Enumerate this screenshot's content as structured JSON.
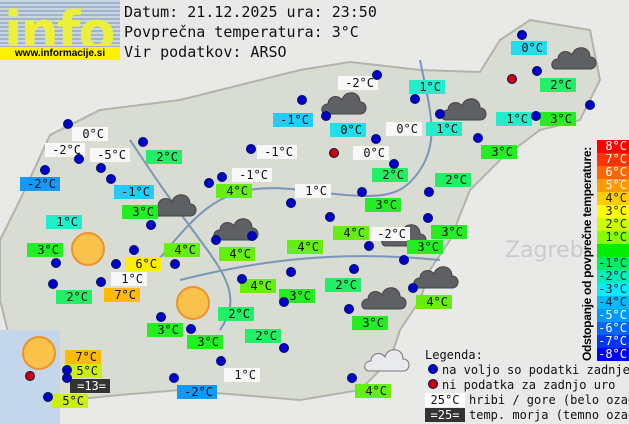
{
  "logo": {
    "text": "info",
    "url": "www.informacije.si"
  },
  "header": {
    "date_line": "Datum: 21.12.2025 ura: 23:50",
    "avg_line": "Povprečna temperatura: 3°C",
    "source_line": "Vir podatkov: ARSO"
  },
  "map_labels": {
    "city": "Zagreb"
  },
  "stations": [
    {
      "t": "0°C",
      "bg": "#f8f8f8"
    },
    {
      "t": "-2°C",
      "bg": "#f8f8f8"
    },
    {
      "t": "-5°C",
      "bg": "#f8f8f8"
    },
    {
      "t": "2°C",
      "bg": "#22ee66"
    },
    {
      "t": "-1°C",
      "bg": "#22ccff"
    },
    {
      "t": "-1°C",
      "bg": "#f8f8f8"
    },
    {
      "t": "-1°C",
      "bg": "#f8f8f8"
    },
    {
      "t": "-2°C",
      "bg": "#1199ff"
    },
    {
      "t": "-1°C",
      "bg": "#22ccff"
    },
    {
      "t": "4°C",
      "bg": "#66ee11"
    },
    {
      "t": "3°C",
      "bg": "#22ee22"
    },
    {
      "t": "1°C",
      "bg": "#f8f8f8"
    },
    {
      "t": "1°C",
      "bg": "#22eecc"
    },
    {
      "t": "3°C",
      "bg": "#22ee22"
    },
    {
      "t": "4°C",
      "bg": "#66ee11"
    },
    {
      "t": "4°C",
      "bg": "#66ee11"
    },
    {
      "t": "6°C",
      "bg": "#ffee00"
    },
    {
      "t": "1°C",
      "bg": "#f8f8f8"
    },
    {
      "t": "7°C",
      "bg": "#ffbb00"
    },
    {
      "t": "2°C",
      "bg": "#22ee66"
    },
    {
      "t": "4°C",
      "bg": "#66ee11"
    },
    {
      "t": "4°C",
      "bg": "#66ee11"
    },
    {
      "t": "3°C",
      "bg": "#22ee22"
    },
    {
      "t": "2°C",
      "bg": "#22ee66"
    },
    {
      "t": "3°C",
      "bg": "#22ee22"
    },
    {
      "t": "3°C",
      "bg": "#22ee22"
    },
    {
      "t": "2°C",
      "bg": "#22ee66"
    },
    {
      "t": "7°C",
      "bg": "#ffbb00"
    },
    {
      "t": "5°C",
      "bg": "#ccee11"
    },
    {
      "t": "=13=",
      "bg": "#333333"
    },
    {
      "t": "5°C",
      "bg": "#ccee11"
    },
    {
      "t": "1°C",
      "bg": "#f8f8f8"
    },
    {
      "t": "-2°C",
      "bg": "#1199ff"
    },
    {
      "t": "0°C",
      "bg": "#22ddee"
    },
    {
      "t": "-2°C",
      "bg": "#f8f8f8"
    },
    {
      "t": "1°C",
      "bg": "#22eecc"
    },
    {
      "t": "2°C",
      "bg": "#22ee66"
    },
    {
      "t": "0°C",
      "bg": "#22ddee"
    },
    {
      "t": "0°C",
      "bg": "#f8f8f8"
    },
    {
      "t": "1°C",
      "bg": "#22eecc"
    },
    {
      "t": "1°C",
      "bg": "#22eecc"
    },
    {
      "t": "3°C",
      "bg": "#22ee22"
    },
    {
      "t": "0°C",
      "bg": "#f8f8f8"
    },
    {
      "t": "3°C",
      "bg": "#22ee22"
    },
    {
      "t": "2°C",
      "bg": "#22ee66"
    },
    {
      "t": "2°C",
      "bg": "#22ee66"
    },
    {
      "t": "3°C",
      "bg": "#22ee22"
    },
    {
      "t": "4°C",
      "bg": "#66ee11"
    },
    {
      "t": "-2°C",
      "bg": "#f8f8f8"
    },
    {
      "t": "3°C",
      "bg": "#22ee22"
    },
    {
      "t": "3°C",
      "bg": "#22ee22"
    },
    {
      "t": "2°C",
      "bg": "#22ee66"
    },
    {
      "t": "4°C",
      "bg": "#66ee11"
    },
    {
      "t": "3°C",
      "bg": "#22ee22"
    },
    {
      "t": "4°C",
      "bg": "#66ee11"
    }
  ],
  "scale": {
    "title": "Odstopanje od povprečne temperature:",
    "steps": [
      {
        "t": "8°C",
        "c": "#ff0000"
      },
      {
        "t": "7°C",
        "c": "#ff3300"
      },
      {
        "t": "6°C",
        "c": "#ff6600"
      },
      {
        "t": "5°C",
        "c": "#ff9900"
      },
      {
        "t": "4°C",
        "c": "#ffcc00"
      },
      {
        "t": "3°C",
        "c": "#ffff00"
      },
      {
        "t": "2°C",
        "c": "#ccff00"
      },
      {
        "t": "1°C",
        "c": "#88ff00"
      },
      {
        "t": "",
        "c": "#00ee00"
      },
      {
        "t": "-1°C",
        "c": "#00ee66"
      },
      {
        "t": "-2°C",
        "c": "#00eebb"
      },
      {
        "t": "-3°C",
        "c": "#00eeff"
      },
      {
        "t": "-4°C",
        "c": "#00bbff"
      },
      {
        "t": "-5°C",
        "c": "#0099ff"
      },
      {
        "t": "-6°C",
        "c": "#0066ff"
      },
      {
        "t": "-7°C",
        "c": "#0033ff"
      },
      {
        "t": "-8°C",
        "c": "#0000ff"
      }
    ]
  },
  "legend": {
    "title": "Legenda:",
    "available": "na voljo so podatki zadnje ure",
    "missing": "ni podatka za zadnjo uro",
    "mountain_sample": "25°C",
    "mountain_text": "hribi / gore (belo ozadje)",
    "sea_sample": "=25=",
    "sea_text": "temp. morja (temno ozadje)"
  },
  "colors": {
    "dot_available": "#0000cc",
    "dot_missing": "#cc0000"
  }
}
